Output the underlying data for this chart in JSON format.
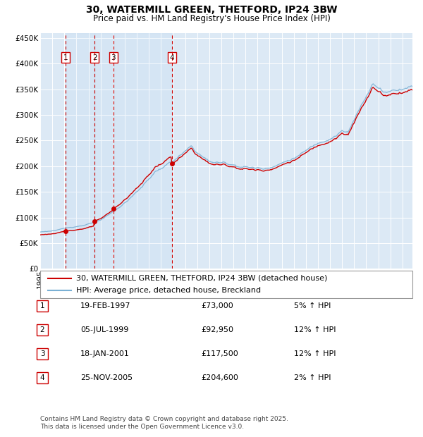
{
  "title": "30, WATERMILL GREEN, THETFORD, IP24 3BW",
  "subtitle": "Price paid vs. HM Land Registry's House Price Index (HPI)",
  "background_color": "#ffffff",
  "plot_bg_color": "#dce9f5",
  "grid_color": "#ffffff",
  "ylim": [
    0,
    460000
  ],
  "yticks": [
    0,
    50000,
    100000,
    150000,
    200000,
    250000,
    300000,
    350000,
    400000,
    450000
  ],
  "ytick_labels": [
    "£0",
    "£50K",
    "£100K",
    "£150K",
    "£200K",
    "£250K",
    "£300K",
    "£350K",
    "£400K",
    "£450K"
  ],
  "xlim_start": 1995.0,
  "xlim_end": 2025.83,
  "sale_dates_num": [
    1997.12,
    1999.51,
    2001.05,
    2005.9
  ],
  "sale_prices": [
    73000,
    92950,
    117500,
    204600
  ],
  "sale_labels": [
    "1",
    "2",
    "3",
    "4"
  ],
  "sale_hpi_pct": [
    "5%",
    "12%",
    "12%",
    "2%"
  ],
  "sale_date_str": [
    "19-FEB-1997",
    "05-JUL-1999",
    "18-JAN-2001",
    "25-NOV-2005"
  ],
  "sale_price_str": [
    "£73,000",
    "£92,950",
    "£117,500",
    "£204,600"
  ],
  "red_line_color": "#cc0000",
  "blue_line_color": "#7ab0d4",
  "legend_red_label": "30, WATERMILL GREEN, THETFORD, IP24 3BW (detached house)",
  "legend_blue_label": "HPI: Average price, detached house, Breckland",
  "footnote": "Contains HM Land Registry data © Crown copyright and database right 2025.\nThis data is licensed under the Open Government Licence v3.0.",
  "title_fontsize": 10,
  "subtitle_fontsize": 8.5,
  "tick_fontsize": 7.5,
  "legend_fontsize": 8,
  "footnote_fontsize": 6.5
}
